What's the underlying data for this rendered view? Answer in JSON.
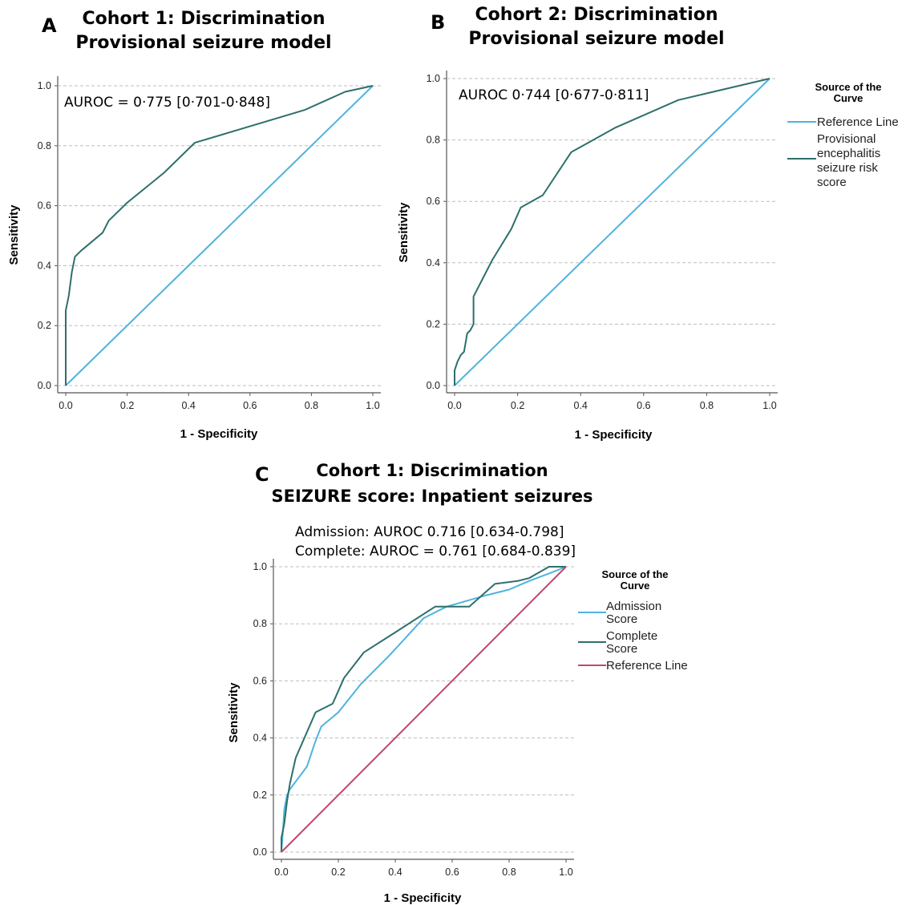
{
  "panels": [
    {
      "letter": "A",
      "title_lines": [
        "Cohort 1: Discrimination",
        "Provisional seizure model"
      ],
      "annotation_lines": [
        "AUROC = 0·775 [0·701-0·848]"
      ],
      "legend_title_lines": [],
      "legend": []
    },
    {
      "letter": "B",
      "title_lines": [
        "Cohort 2: Discrimination",
        "Provisional seizure model"
      ],
      "annotation_lines": [
        "AUROC 0·744 [0·677-0·811]"
      ],
      "legend_title_lines": [
        "Source of the",
        "Curve"
      ],
      "legend": [
        {
          "label_lines": [
            "Reference Line"
          ],
          "color": "#4fb3dd"
        },
        {
          "label_lines": [
            "Provisional",
            "encephalitis",
            "seizure risk",
            "score"
          ],
          "color": "#2e6f6b"
        }
      ]
    },
    {
      "letter": "C",
      "title_lines": [
        "Cohort 1: Discrimination",
        "SEIZURE score: Inpatient seizures"
      ],
      "annotation_lines": [
        "Admission: AUROC 0.716 [0.634-0.798]",
        "Complete: AUROC = 0.761 [0.684-0.839]"
      ],
      "legend_title_lines": [
        "Source of the",
        "Curve"
      ],
      "legend": [
        {
          "label_lines": [
            "Admission",
            "Score"
          ],
          "color": "#4fb3dd"
        },
        {
          "label_lines": [
            "Complete",
            "Score"
          ],
          "color": "#2e6f6b"
        },
        {
          "label_lines": [
            "Reference Line"
          ],
          "color": "#c2476e"
        }
      ]
    }
  ],
  "chart_data": [
    {
      "type": "line",
      "title": "Cohort 1: Discrimination Provisional seizure model",
      "xlabel": "1 - Specificity",
      "ylabel": "Sensitivity",
      "xlim": [
        0,
        1
      ],
      "ylim": [
        0,
        1
      ],
      "ticks": [
        "0.0",
        "0.2",
        "0.4",
        "0.6",
        "0.8",
        "1.0"
      ],
      "grid": "horizontal dashed",
      "series": [
        {
          "color": "#4fb3dd",
          "x": [
            0,
            1
          ],
          "y": [
            0,
            1
          ]
        },
        {
          "color": "#2e6f6b",
          "x": [
            0,
            0,
            0.01,
            0.02,
            0.03,
            0.05,
            0.12,
            0.14,
            0.2,
            0.32,
            0.42,
            0.78,
            0.91,
            1.0
          ],
          "y": [
            0,
            0.25,
            0.3,
            0.38,
            0.43,
            0.45,
            0.51,
            0.55,
            0.61,
            0.71,
            0.81,
            0.92,
            0.98,
            1.0
          ]
        }
      ]
    },
    {
      "type": "line",
      "title": "Cohort 2: Discrimination Provisional seizure model",
      "xlabel": "1 - Specificity",
      "ylabel": "Sensitivity",
      "xlim": [
        0,
        1
      ],
      "ylim": [
        0,
        1
      ],
      "ticks": [
        "0.0",
        "0.2",
        "0.4",
        "0.6",
        "0.8",
        "1.0"
      ],
      "legend_position": "right",
      "grid": "horizontal dashed",
      "series": [
        {
          "name": "Reference Line",
          "color": "#4fb3dd",
          "x": [
            0,
            1
          ],
          "y": [
            0,
            1
          ]
        },
        {
          "name": "Provisional encephalitis seizure risk score",
          "color": "#2e6f6b",
          "x": [
            0,
            0,
            0.01,
            0.02,
            0.03,
            0.04,
            0.05,
            0.06,
            0.06,
            0.12,
            0.18,
            0.21,
            0.28,
            0.37,
            0.51,
            0.71,
            1.0
          ],
          "y": [
            0,
            0.05,
            0.08,
            0.1,
            0.11,
            0.17,
            0.18,
            0.2,
            0.29,
            0.41,
            0.51,
            0.58,
            0.62,
            0.76,
            0.84,
            0.93,
            1.0
          ]
        }
      ]
    },
    {
      "type": "line",
      "title": "Cohort 1: Discrimination SEIZURE score: Inpatient seizures",
      "xlabel": "1 - Specificity",
      "ylabel": "Sensitivity",
      "xlim": [
        0,
        1
      ],
      "ylim": [
        0,
        1
      ],
      "ticks": [
        "0.0",
        "0.2",
        "0.4",
        "0.6",
        "0.8",
        "1.0"
      ],
      "legend_position": "right",
      "grid": "horizontal dashed",
      "series": [
        {
          "name": "Admission Score",
          "color": "#4fb3dd",
          "x": [
            0,
            0.005,
            0.01,
            0.02,
            0.03,
            0.09,
            0.12,
            0.14,
            0.2,
            0.28,
            0.38,
            0.5,
            0.58,
            0.65,
            0.72,
            0.8,
            0.87,
            0.95,
            1.0
          ],
          "y": [
            0,
            0.07,
            0.15,
            0.2,
            0.22,
            0.3,
            0.39,
            0.44,
            0.49,
            0.59,
            0.69,
            0.82,
            0.86,
            0.88,
            0.9,
            0.92,
            0.95,
            0.98,
            1.0
          ]
        },
        {
          "name": "Complete Score",
          "color": "#2e6f6b",
          "x": [
            0,
            0,
            0.01,
            0.02,
            0.03,
            0.05,
            0.12,
            0.18,
            0.22,
            0.29,
            0.4,
            0.54,
            0.66,
            0.75,
            0.83,
            0.87,
            0.94,
            1.0
          ],
          "y": [
            0,
            0.05,
            0.1,
            0.18,
            0.24,
            0.33,
            0.49,
            0.52,
            0.61,
            0.7,
            0.77,
            0.86,
            0.86,
            0.94,
            0.95,
            0.96,
            1.0,
            1.0
          ]
        },
        {
          "name": "Reference Line",
          "color": "#c2476e",
          "x": [
            0,
            1
          ],
          "y": [
            0,
            1
          ]
        }
      ]
    }
  ]
}
